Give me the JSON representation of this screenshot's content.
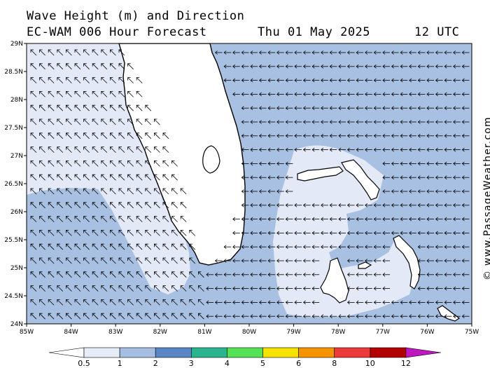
{
  "header": {
    "title": "Wave Height (m) and Direction",
    "model": "EC-WAM 006 Hour Forecast",
    "date": "Thu 01 May 2025",
    "time": "12 UTC"
  },
  "credit": "© www.PassageWeather.com",
  "map": {
    "lat_ticks": [
      "29N",
      "28.5N",
      "28N",
      "27.5N",
      "27N",
      "26.5N",
      "26N",
      "25.5N",
      "25N",
      "24.5N",
      "24N"
    ],
    "lon_ticks": [
      "85W",
      "84W",
      "83W",
      "82W",
      "81W",
      "80W",
      "79W",
      "78W",
      "77W",
      "76W",
      "75W"
    ],
    "lat_range": [
      24,
      29
    ],
    "lon_range": [
      -85,
      -75
    ],
    "arrow_direction_gulf": "north-west",
    "arrow_direction_atlantic": "west"
  },
  "colorbar": {
    "labels": [
      "0.5",
      "1",
      "2",
      "3",
      "4",
      "5",
      "6",
      "8",
      "10",
      "12"
    ],
    "colors": [
      "#e6ecf8",
      "#a4bde0",
      "#5a86c6",
      "#2ab58f",
      "#55e255",
      "#f5e200",
      "#f59300",
      "#ec3a3a",
      "#b30000",
      "#c018c0"
    ]
  },
  "colors": {
    "light_wave": "#e3e9f6",
    "mid_wave": "#a8c0e2",
    "land": "#ffffff"
  }
}
